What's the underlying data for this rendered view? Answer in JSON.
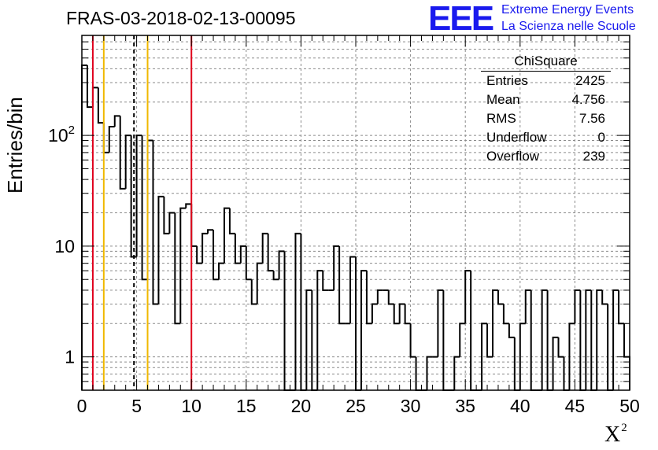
{
  "title": "FRAS-03-2018-02-13-00095",
  "logo": {
    "mark": "EEE",
    "line1": "Extreme Energy Events",
    "line2": "La Scienza nelle Scuole"
  },
  "stats": {
    "title": "ChiSquare",
    "rows": [
      {
        "label": "Entries",
        "value": "2425"
      },
      {
        "label": "Mean",
        "value": "4.756"
      },
      {
        "label": "RMS",
        "value": "7.56"
      },
      {
        "label": "Underflow",
        "value": "0"
      },
      {
        "label": "Overflow",
        "value": "239"
      }
    ]
  },
  "colors": {
    "red": "#e0001c",
    "yellow": "#f0b800",
    "black": "#000000",
    "grid": "#8a8a8a"
  },
  "chart_data": {
    "type": "histogram",
    "ylabel": "Entries/bin",
    "xlabel": "X",
    "xlabel_sup": "2",
    "xlim": [
      0,
      50
    ],
    "ylim": [
      0.5,
      800
    ],
    "yscale": "log",
    "bin_width": 0.5,
    "grid": true,
    "legend": "top-right",
    "x_ticks": [
      "0",
      "5",
      "10",
      "15",
      "20",
      "25",
      "30",
      "35",
      "40",
      "45",
      "50"
    ],
    "y_ticks": [
      {
        "value": 1,
        "label": "1"
      },
      {
        "value": 10,
        "label": "10"
      },
      {
        "value": 100,
        "label": "10",
        "sup": "2"
      }
    ],
    "vertical_lines": [
      {
        "x": 1,
        "color": "red",
        "style": "solid"
      },
      {
        "x": 2,
        "color": "yellow",
        "style": "solid"
      },
      {
        "x": 4.756,
        "color": "black",
        "style": "dashed"
      },
      {
        "x": 6,
        "color": "yellow",
        "style": "solid"
      },
      {
        "x": 10,
        "color": "red",
        "style": "solid"
      }
    ],
    "values": [
      430,
      180,
      270,
      130,
      70,
      120,
      150,
      33,
      100,
      8,
      100,
      5,
      90,
      3,
      28,
      13,
      20,
      2,
      22,
      24,
      10,
      7,
      13,
      14,
      5,
      7,
      22,
      13,
      7,
      10,
      5,
      3,
      7,
      13,
      6,
      5,
      9,
      0,
      0,
      13,
      0,
      4,
      0,
      6,
      4,
      4,
      10,
      2,
      2,
      8,
      0,
      6,
      2,
      3,
      4,
      4,
      3,
      2,
      3,
      2,
      1,
      0,
      0,
      1,
      1,
      4,
      0,
      0,
      1,
      2,
      6,
      0,
      0,
      2,
      1,
      4,
      3,
      2,
      1.5,
      0,
      2,
      4,
      0,
      0,
      4,
      0,
      1.5,
      1,
      0,
      2,
      4,
      0,
      4,
      0,
      4,
      3,
      0,
      4,
      2,
      1
    ]
  }
}
